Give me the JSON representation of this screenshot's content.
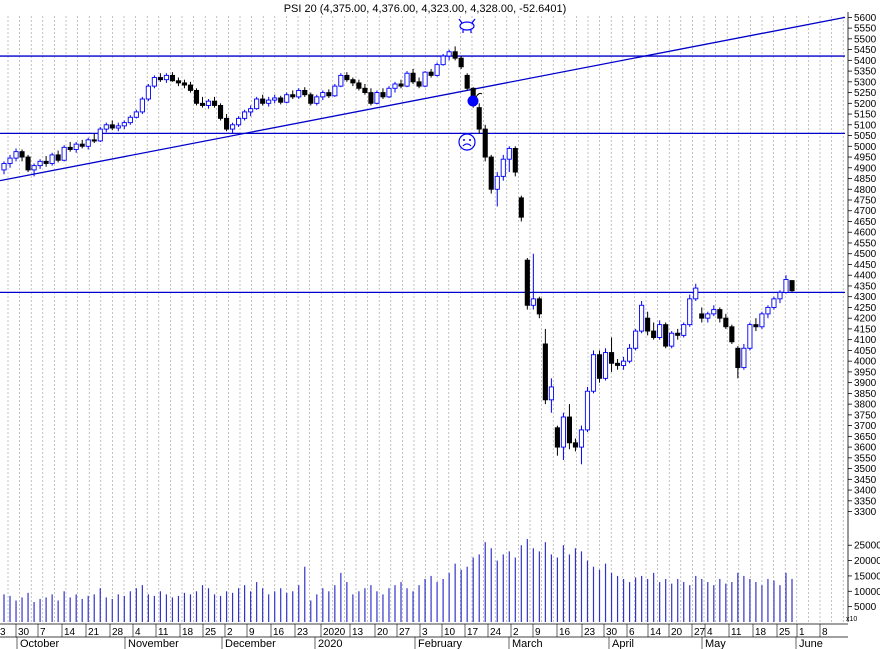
{
  "chart_data": {
    "type": "candlestick",
    "title": "PSI 20 (4,375.00, 4,376.00, 4,323.00, 4,328.00, -52.6401)",
    "price_ticks": [
      3300,
      3350,
      3400,
      3450,
      3500,
      3550,
      3600,
      3650,
      3700,
      3750,
      3800,
      3850,
      3900,
      3950,
      4000,
      4050,
      4100,
      4150,
      4200,
      4250,
      4300,
      4350,
      4400,
      4450,
      4500,
      4550,
      4600,
      4650,
      4700,
      4750,
      4800,
      4850,
      4900,
      4950,
      5000,
      5050,
      5100,
      5150,
      5200,
      5250,
      5300,
      5350,
      5400,
      5450,
      5500,
      5550,
      5600
    ],
    "price_range": [
      3270,
      5625
    ],
    "volume_ticks": [
      5000,
      10000,
      15000,
      20000,
      25000
    ],
    "volume_range": [
      0,
      28000
    ],
    "volume_unit_label": "x10",
    "day_labels": [
      "3",
      "30",
      "7",
      "14",
      "21",
      "28",
      "4",
      "11",
      "18",
      "25",
      "2",
      "9",
      "16",
      "23",
      "2020",
      "13",
      "20",
      "27",
      "3",
      "10",
      "17",
      "24",
      "2",
      "9",
      "16",
      "23",
      "30",
      "6",
      "14",
      "20",
      "27",
      "4",
      "11",
      "18",
      "25",
      "1",
      "8"
    ],
    "month_labels": [
      "October",
      "November",
      "December",
      "2020",
      "February",
      "March",
      "April",
      "May",
      "June"
    ],
    "horizontal_lines": [
      5420,
      5060,
      4320
    ],
    "trendline": {
      "from_price": 4840,
      "to_price": 5600,
      "from_x_frac": 0,
      "to_x_frac": 1
    },
    "annotations": [
      "bull-icon",
      "bomb-icon",
      "sad-face-icon"
    ],
    "colors": {
      "up": "#0000ff",
      "down": "#000000",
      "line": "#0000cc",
      "volume": "#3333cc",
      "grid": "#999999"
    },
    "candles": [
      {
        "o": 4890,
        "h": 4930,
        "l": 4870,
        "c": 4920
      },
      {
        "o": 4920,
        "h": 4960,
        "l": 4900,
        "c": 4945
      },
      {
        "o": 4945,
        "h": 4990,
        "l": 4930,
        "c": 4975
      },
      {
        "o": 4975,
        "h": 4985,
        "l": 4930,
        "c": 4950
      },
      {
        "o": 4950,
        "h": 4960,
        "l": 4880,
        "c": 4890
      },
      {
        "o": 4890,
        "h": 4920,
        "l": 4860,
        "c": 4910
      },
      {
        "o": 4910,
        "h": 4940,
        "l": 4895,
        "c": 4930
      },
      {
        "o": 4930,
        "h": 4955,
        "l": 4905,
        "c": 4920
      },
      {
        "o": 4920,
        "h": 4970,
        "l": 4910,
        "c": 4960
      },
      {
        "o": 4960,
        "h": 4980,
        "l": 4925,
        "c": 4935
      },
      {
        "o": 4935,
        "h": 5005,
        "l": 4930,
        "c": 4995
      },
      {
        "o": 4995,
        "h": 5020,
        "l": 4975,
        "c": 4985
      },
      {
        "o": 4985,
        "h": 5020,
        "l": 4970,
        "c": 5010
      },
      {
        "o": 5010,
        "h": 5030,
        "l": 4990,
        "c": 5000
      },
      {
        "o": 5000,
        "h": 5040,
        "l": 4985,
        "c": 5030
      },
      {
        "o": 5030,
        "h": 5060,
        "l": 5015,
        "c": 5025
      },
      {
        "o": 5025,
        "h": 5090,
        "l": 5020,
        "c": 5080
      },
      {
        "o": 5080,
        "h": 5110,
        "l": 5065,
        "c": 5100
      },
      {
        "o": 5100,
        "h": 5120,
        "l": 5075,
        "c": 5085
      },
      {
        "o": 5085,
        "h": 5110,
        "l": 5070,
        "c": 5095
      },
      {
        "o": 5095,
        "h": 5120,
        "l": 5080,
        "c": 5110
      },
      {
        "o": 5110,
        "h": 5145,
        "l": 5100,
        "c": 5135
      },
      {
        "o": 5135,
        "h": 5170,
        "l": 5130,
        "c": 5160
      },
      {
        "o": 5160,
        "h": 5230,
        "l": 5150,
        "c": 5220
      },
      {
        "o": 5220,
        "h": 5290,
        "l": 5210,
        "c": 5280
      },
      {
        "o": 5280,
        "h": 5330,
        "l": 5270,
        "c": 5320
      },
      {
        "o": 5320,
        "h": 5340,
        "l": 5300,
        "c": 5310
      },
      {
        "o": 5310,
        "h": 5340,
        "l": 5295,
        "c": 5330
      },
      {
        "o": 5330,
        "h": 5345,
        "l": 5300,
        "c": 5305
      },
      {
        "o": 5305,
        "h": 5320,
        "l": 5280,
        "c": 5295
      },
      {
        "o": 5295,
        "h": 5310,
        "l": 5270,
        "c": 5285
      },
      {
        "o": 5285,
        "h": 5300,
        "l": 5250,
        "c": 5260
      },
      {
        "o": 5260,
        "h": 5270,
        "l": 5190,
        "c": 5200
      },
      {
        "o": 5200,
        "h": 5230,
        "l": 5180,
        "c": 5190
      },
      {
        "o": 5190,
        "h": 5220,
        "l": 5175,
        "c": 5210
      },
      {
        "o": 5210,
        "h": 5230,
        "l": 5180,
        "c": 5190
      },
      {
        "o": 5190,
        "h": 5200,
        "l": 5120,
        "c": 5130
      },
      {
        "o": 5130,
        "h": 5150,
        "l": 5070,
        "c": 5080
      },
      {
        "o": 5080,
        "h": 5110,
        "l": 5060,
        "c": 5100
      },
      {
        "o": 5100,
        "h": 5140,
        "l": 5090,
        "c": 5130
      },
      {
        "o": 5130,
        "h": 5170,
        "l": 5120,
        "c": 5160
      },
      {
        "o": 5160,
        "h": 5190,
        "l": 5140,
        "c": 5175
      },
      {
        "o": 5175,
        "h": 5230,
        "l": 5170,
        "c": 5220
      },
      {
        "o": 5220,
        "h": 5240,
        "l": 5190,
        "c": 5200
      },
      {
        "o": 5200,
        "h": 5230,
        "l": 5185,
        "c": 5215
      },
      {
        "o": 5215,
        "h": 5240,
        "l": 5200,
        "c": 5225
      },
      {
        "o": 5225,
        "h": 5235,
        "l": 5195,
        "c": 5205
      },
      {
        "o": 5205,
        "h": 5250,
        "l": 5200,
        "c": 5240
      },
      {
        "o": 5240,
        "h": 5260,
        "l": 5220,
        "c": 5230
      },
      {
        "o": 5230,
        "h": 5270,
        "l": 5220,
        "c": 5260
      },
      {
        "o": 5260,
        "h": 5275,
        "l": 5230,
        "c": 5240
      },
      {
        "o": 5240,
        "h": 5250,
        "l": 5190,
        "c": 5200
      },
      {
        "o": 5200,
        "h": 5240,
        "l": 5190,
        "c": 5230
      },
      {
        "o": 5230,
        "h": 5260,
        "l": 5215,
        "c": 5250
      },
      {
        "o": 5250,
        "h": 5265,
        "l": 5225,
        "c": 5235
      },
      {
        "o": 5235,
        "h": 5290,
        "l": 5230,
        "c": 5280
      },
      {
        "o": 5280,
        "h": 5340,
        "l": 5275,
        "c": 5330
      },
      {
        "o": 5330,
        "h": 5345,
        "l": 5300,
        "c": 5310
      },
      {
        "o": 5310,
        "h": 5320,
        "l": 5280,
        "c": 5295
      },
      {
        "o": 5295,
        "h": 5310,
        "l": 5260,
        "c": 5270
      },
      {
        "o": 5270,
        "h": 5290,
        "l": 5240,
        "c": 5250
      },
      {
        "o": 5250,
        "h": 5270,
        "l": 5190,
        "c": 5200
      },
      {
        "o": 5200,
        "h": 5260,
        "l": 5195,
        "c": 5250
      },
      {
        "o": 5250,
        "h": 5270,
        "l": 5220,
        "c": 5230
      },
      {
        "o": 5230,
        "h": 5280,
        "l": 5225,
        "c": 5270
      },
      {
        "o": 5270,
        "h": 5300,
        "l": 5250,
        "c": 5290
      },
      {
        "o": 5290,
        "h": 5310,
        "l": 5270,
        "c": 5280
      },
      {
        "o": 5280,
        "h": 5350,
        "l": 5275,
        "c": 5340
      },
      {
        "o": 5340,
        "h": 5360,
        "l": 5290,
        "c": 5300
      },
      {
        "o": 5300,
        "h": 5320,
        "l": 5270,
        "c": 5280
      },
      {
        "o": 5280,
        "h": 5350,
        "l": 5275,
        "c": 5345
      },
      {
        "o": 5345,
        "h": 5360,
        "l": 5320,
        "c": 5330
      },
      {
        "o": 5330,
        "h": 5390,
        "l": 5325,
        "c": 5380
      },
      {
        "o": 5380,
        "h": 5430,
        "l": 5375,
        "c": 5420
      },
      {
        "o": 5420,
        "h": 5450,
        "l": 5400,
        "c": 5440
      },
      {
        "o": 5440,
        "h": 5465,
        "l": 5400,
        "c": 5410
      },
      {
        "o": 5410,
        "h": 5420,
        "l": 5360,
        "c": 5370
      },
      {
        "o": 5330,
        "h": 5340,
        "l": 5260,
        "c": 5270
      },
      {
        "o": 5270,
        "h": 5275,
        "l": 5180,
        "c": 5190
      },
      {
        "o": 5180,
        "h": 5200,
        "l": 5060,
        "c": 5080
      },
      {
        "o": 5080,
        "h": 5100,
        "l": 4930,
        "c": 4950
      },
      {
        "o": 4950,
        "h": 4960,
        "l": 4780,
        "c": 4800
      },
      {
        "o": 4800,
        "h": 4880,
        "l": 4720,
        "c": 4860
      },
      {
        "o": 4860,
        "h": 4960,
        "l": 4840,
        "c": 4940
      },
      {
        "o": 4940,
        "h": 5000,
        "l": 4880,
        "c": 4990
      },
      {
        "o": 4990,
        "h": 5000,
        "l": 4860,
        "c": 4880
      },
      {
        "o": 4760,
        "h": 4770,
        "l": 4650,
        "c": 4670
      },
      {
        "o": 4470,
        "h": 4480,
        "l": 4240,
        "c": 4260
      },
      {
        "o": 4260,
        "h": 4500,
        "l": 4240,
        "c": 4290
      },
      {
        "o": 4290,
        "h": 4300,
        "l": 4200,
        "c": 4220
      },
      {
        "o": 4080,
        "h": 4150,
        "l": 3800,
        "c": 3820
      },
      {
        "o": 3820,
        "h": 3920,
        "l": 3760,
        "c": 3880
      },
      {
        "o": 3690,
        "h": 3700,
        "l": 3560,
        "c": 3600
      },
      {
        "o": 3600,
        "h": 3760,
        "l": 3540,
        "c": 3740
      },
      {
        "o": 3740,
        "h": 3800,
        "l": 3590,
        "c": 3620
      },
      {
        "o": 3620,
        "h": 3640,
        "l": 3580,
        "c": 3600
      },
      {
        "o": 3600,
        "h": 3700,
        "l": 3520,
        "c": 3680
      },
      {
        "o": 3680,
        "h": 3880,
        "l": 3670,
        "c": 3860
      },
      {
        "o": 3860,
        "h": 4050,
        "l": 3850,
        "c": 4030
      },
      {
        "o": 4030,
        "h": 4050,
        "l": 3900,
        "c": 3920
      },
      {
        "o": 3920,
        "h": 4060,
        "l": 3910,
        "c": 4040
      },
      {
        "o": 4040,
        "h": 4110,
        "l": 3950,
        "c": 3990
      },
      {
        "o": 3990,
        "h": 4010,
        "l": 3960,
        "c": 3980
      },
      {
        "o": 3980,
        "h": 4020,
        "l": 3960,
        "c": 4000
      },
      {
        "o": 4000,
        "h": 4080,
        "l": 3990,
        "c": 4060
      },
      {
        "o": 4060,
        "h": 4150,
        "l": 4050,
        "c": 4140
      },
      {
        "o": 4140,
        "h": 4280,
        "l": 4130,
        "c": 4260
      },
      {
        "o": 4200,
        "h": 4230,
        "l": 4120,
        "c": 4140
      },
      {
        "o": 4140,
        "h": 4180,
        "l": 4100,
        "c": 4110
      },
      {
        "o": 4110,
        "h": 4190,
        "l": 4100,
        "c": 4170
      },
      {
        "o": 4170,
        "h": 4180,
        "l": 4060,
        "c": 4070
      },
      {
        "o": 4070,
        "h": 4140,
        "l": 4060,
        "c": 4130
      },
      {
        "o": 4130,
        "h": 4150,
        "l": 4100,
        "c": 4120
      },
      {
        "o": 4120,
        "h": 4180,
        "l": 4110,
        "c": 4170
      },
      {
        "o": 4170,
        "h": 4310,
        "l": 4160,
        "c": 4290
      },
      {
        "o": 4290,
        "h": 4360,
        "l": 4280,
        "c": 4340
      },
      {
        "o": 4220,
        "h": 4250,
        "l": 4180,
        "c": 4200
      },
      {
        "o": 4200,
        "h": 4230,
        "l": 4180,
        "c": 4220
      },
      {
        "o": 4220,
        "h": 4260,
        "l": 4210,
        "c": 4240
      },
      {
        "o": 4240,
        "h": 4250,
        "l": 4180,
        "c": 4200
      },
      {
        "o": 4200,
        "h": 4220,
        "l": 4150,
        "c": 4160
      },
      {
        "o": 4160,
        "h": 4170,
        "l": 4080,
        "c": 4090
      },
      {
        "o": 4060,
        "h": 4070,
        "l": 3920,
        "c": 3970
      },
      {
        "o": 3970,
        "h": 4080,
        "l": 3960,
        "c": 4060
      },
      {
        "o": 4060,
        "h": 4180,
        "l": 4050,
        "c": 4170
      },
      {
        "o": 4170,
        "h": 4200,
        "l": 4140,
        "c": 4160
      },
      {
        "o": 4160,
        "h": 4230,
        "l": 4150,
        "c": 4220
      },
      {
        "o": 4220,
        "h": 4260,
        "l": 4200,
        "c": 4250
      },
      {
        "o": 4250,
        "h": 4300,
        "l": 4240,
        "c": 4290
      },
      {
        "o": 4290,
        "h": 4330,
        "l": 4270,
        "c": 4320
      },
      {
        "o": 4320,
        "h": 4400,
        "l": 4315,
        "c": 4380
      },
      {
        "o": 4375,
        "h": 4376,
        "l": 4323,
        "c": 4328
      }
    ],
    "volume": [
      9000,
      8500,
      7000,
      8000,
      9500,
      6500,
      7500,
      8000,
      9000,
      7000,
      10000,
      8000,
      9000,
      7500,
      8500,
      9000,
      11000,
      8000,
      7500,
      9000,
      8500,
      10000,
      11000,
      12000,
      9000,
      8500,
      10000,
      9000,
      8000,
      8500,
      9500,
      9000,
      10000,
      12000,
      11000,
      9000,
      8500,
      10000,
      9500,
      11000,
      12000,
      10000,
      13000,
      11000,
      9000,
      10000,
      11000,
      9500,
      10000,
      12000,
      18000,
      7000,
      9000,
      11000,
      10000,
      12000,
      16000,
      13000,
      9000,
      10000,
      11000,
      12000,
      10000,
      9000,
      11000,
      12000,
      13000,
      11000,
      10000,
      12000,
      14000,
      15000,
      13000,
      14000,
      16000,
      19000,
      17000,
      18000,
      21000,
      22000,
      26000,
      24000,
      20000,
      22000,
      23000,
      21000,
      25000,
      27000,
      24000,
      23000,
      26000,
      22000,
      21000,
      25000,
      22000,
      24000,
      23000,
      20000,
      18000,
      17000,
      19000,
      16000,
      15000,
      14000,
      13000,
      14500,
      15000,
      14000,
      16000,
      13000,
      14000,
      12500,
      14000,
      13000,
      12000,
      15000,
      14000,
      13000,
      12000,
      14000,
      12500,
      13000,
      16000,
      15000,
      14000,
      13000,
      12000,
      14000,
      13500,
      12000,
      16000,
      14000
    ]
  }
}
